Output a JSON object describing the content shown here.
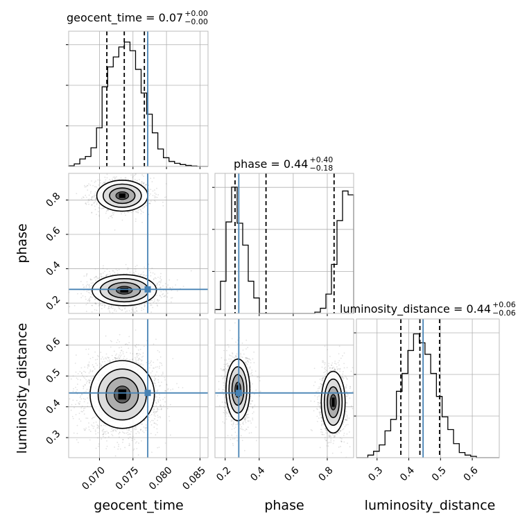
{
  "colors": {
    "truth": "#4682b4",
    "hist": "#000000",
    "grid": "#b0b0b0",
    "scatter": "#888888"
  },
  "chart_data": {
    "type": "corner",
    "parameters": [
      "geocent_time",
      "phase",
      "luminosity_distance"
    ],
    "truths": {
      "geocent_time": 0.0772,
      "phase": 0.28,
      "luminosity_distance": 0.445
    },
    "ranges": {
      "geocent_time": [
        0.0654,
        0.0862
      ],
      "phase": [
        0.14,
        0.955
      ],
      "luminosity_distance": [
        0.235,
        0.685
      ]
    },
    "ticks": {
      "geocent_time": {
        "values": [
          0.07,
          0.075,
          0.08,
          0.085
        ],
        "labels": [
          "0.070",
          "0.075",
          "0.080",
          "0.085"
        ]
      },
      "phase_x": {
        "values": [
          0.2,
          0.4,
          0.6,
          0.8
        ],
        "labels": [
          "0.2",
          "0.4",
          "0.6",
          "0.8"
        ]
      },
      "phase_y": {
        "values": [
          0.2,
          0.4,
          0.6,
          0.8
        ],
        "labels": [
          "0.2",
          "0.4",
          "0.6",
          "0.8"
        ]
      },
      "luminosity_distance_x": {
        "values": [
          0.3,
          0.4,
          0.5,
          0.6
        ],
        "labels": [
          "0.3",
          "0.4",
          "0.5",
          "0.6"
        ]
      },
      "luminosity_distance_y": {
        "values": [
          0.3,
          0.4,
          0.5,
          0.6
        ],
        "labels": [
          "0.3",
          "0.4",
          "0.5",
          "0.6"
        ]
      }
    },
    "titles": [
      {
        "param": "geocent_time",
        "text": "geocent_time = 0.07",
        "plus": "+0.00",
        "minus": "−0.00"
      },
      {
        "param": "phase",
        "text": "phase = 0.44",
        "plus": "+0.40",
        "minus": "−0.18"
      },
      {
        "param": "luminosity_distance",
        "text": "luminosity_distance = 0.44",
        "plus": "+0.06",
        "minus": "−0.06"
      }
    ],
    "axis_labels": {
      "x": [
        "geocent_time",
        "phase",
        "luminosity_distance"
      ],
      "y": [
        "phase",
        "luminosity_distance"
      ]
    },
    "histograms": {
      "geocent_time": {
        "edges_start": 0.0654,
        "bin_width": 0.000832,
        "counts": [
          0.005,
          0.02,
          0.06,
          0.08,
          0.15,
          0.31,
          0.64,
          0.8,
          0.88,
          0.96,
          1.0,
          0.93,
          0.78,
          0.59,
          0.42,
          0.27,
          0.14,
          0.07,
          0.04,
          0.025,
          0.015,
          0.008,
          0.003,
          0.0,
          0.0
        ],
        "quantiles": [
          0.0711,
          0.0737,
          0.0767
        ]
      },
      "phase": {
        "edges_start": 0.14,
        "bin_width": 0.0326,
        "counts": [
          0.03,
          0.25,
          0.71,
          0.98,
          0.7,
          0.53,
          0.25,
          0.12,
          0.0,
          0.0,
          0.0,
          0.0,
          0.0,
          0.0,
          0.0,
          0.0,
          0.0,
          0.0,
          0.01,
          0.04,
          0.15,
          0.38,
          0.72,
          0.95,
          0.92
        ],
        "quantiles": [
          0.258,
          0.44,
          0.84
        ]
      },
      "luminosity_distance": {
        "edges_start": 0.235,
        "bin_width": 0.018,
        "counts": [
          0.0,
          0.0,
          0.02,
          0.05,
          0.1,
          0.21,
          0.3,
          0.52,
          0.66,
          0.84,
          0.97,
          0.9,
          0.81,
          0.66,
          0.48,
          0.32,
          0.22,
          0.11,
          0.04,
          0.02,
          0.01,
          0.0,
          0.0,
          0.0,
          0.0
        ],
        "quantiles": [
          0.375,
          0.435,
          0.497
        ]
      }
    },
    "scatter2d": [
      {
        "x": "geocent_time",
        "y": "phase",
        "modes": [
          {
            "cx": 0.0734,
            "cy": 0.825,
            "sx": 0.0019,
            "sy": 0.045,
            "weight": 0.45
          },
          {
            "cx": 0.0737,
            "cy": 0.275,
            "sx": 0.0024,
            "sy": 0.045,
            "weight": 0.55
          }
        ]
      },
      {
        "x": "geocent_time",
        "y": "luminosity_distance",
        "modes": [
          {
            "cx": 0.0734,
            "cy": 0.44,
            "sx": 0.0024,
            "sy": 0.055,
            "weight": 1.0
          }
        ]
      },
      {
        "x": "phase",
        "y": "luminosity_distance",
        "modes": [
          {
            "cx": 0.275,
            "cy": 0.455,
            "sx": 0.035,
            "sy": 0.05,
            "weight": 0.52
          },
          {
            "cx": 0.835,
            "cy": 0.415,
            "sx": 0.035,
            "sy": 0.05,
            "weight": 0.48
          }
        ]
      }
    ]
  }
}
